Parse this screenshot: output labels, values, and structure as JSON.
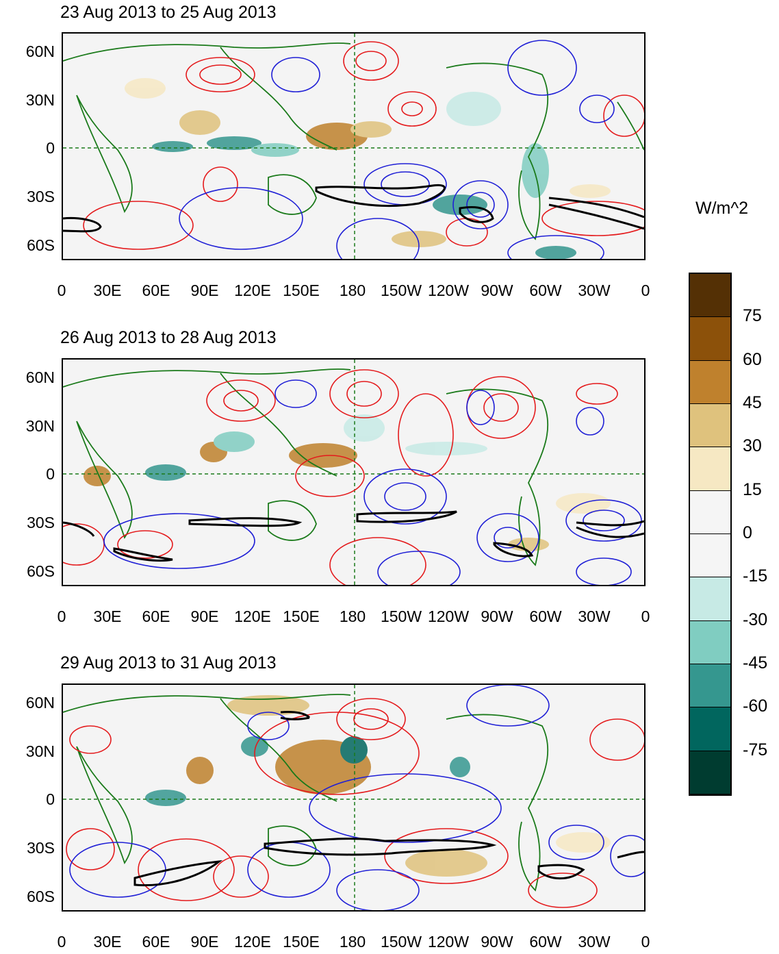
{
  "panels": [
    {
      "title": "23 Aug 2013 to 25 Aug 2013"
    },
    {
      "title": "26 Aug 2013 to 28 Aug 2013"
    },
    {
      "title": "29 Aug 2013 to 31 Aug 2013"
    }
  ],
  "lat_labels": [
    "60N",
    "30N",
    "0",
    "30S",
    "60S"
  ],
  "lon_labels": [
    "0",
    "30E",
    "60E",
    "90E",
    "120E",
    "150E",
    "180",
    "150W",
    "120W",
    "90W",
    "60W",
    "30W",
    "0"
  ],
  "colorbar": {
    "units": "W/m^2",
    "labels": [
      "75",
      "60",
      "45",
      "30",
      "15",
      "0",
      "-15",
      "-30",
      "-45",
      "-60",
      "-75"
    ],
    "colors": [
      "#543005",
      "#8c510a",
      "#bf812d",
      "#dfc27d",
      "#f6e8c3",
      "#f5f5f5",
      "#f5f5f5",
      "#c7eae5",
      "#80cdc1",
      "#35978f",
      "#01665e",
      "#003c30"
    ]
  },
  "styles": {
    "positive_contour": "#e41a1c",
    "negative_contour": "#1f1fd6",
    "coast": "#1a7a1a",
    "zero_contour": "#000000"
  }
}
